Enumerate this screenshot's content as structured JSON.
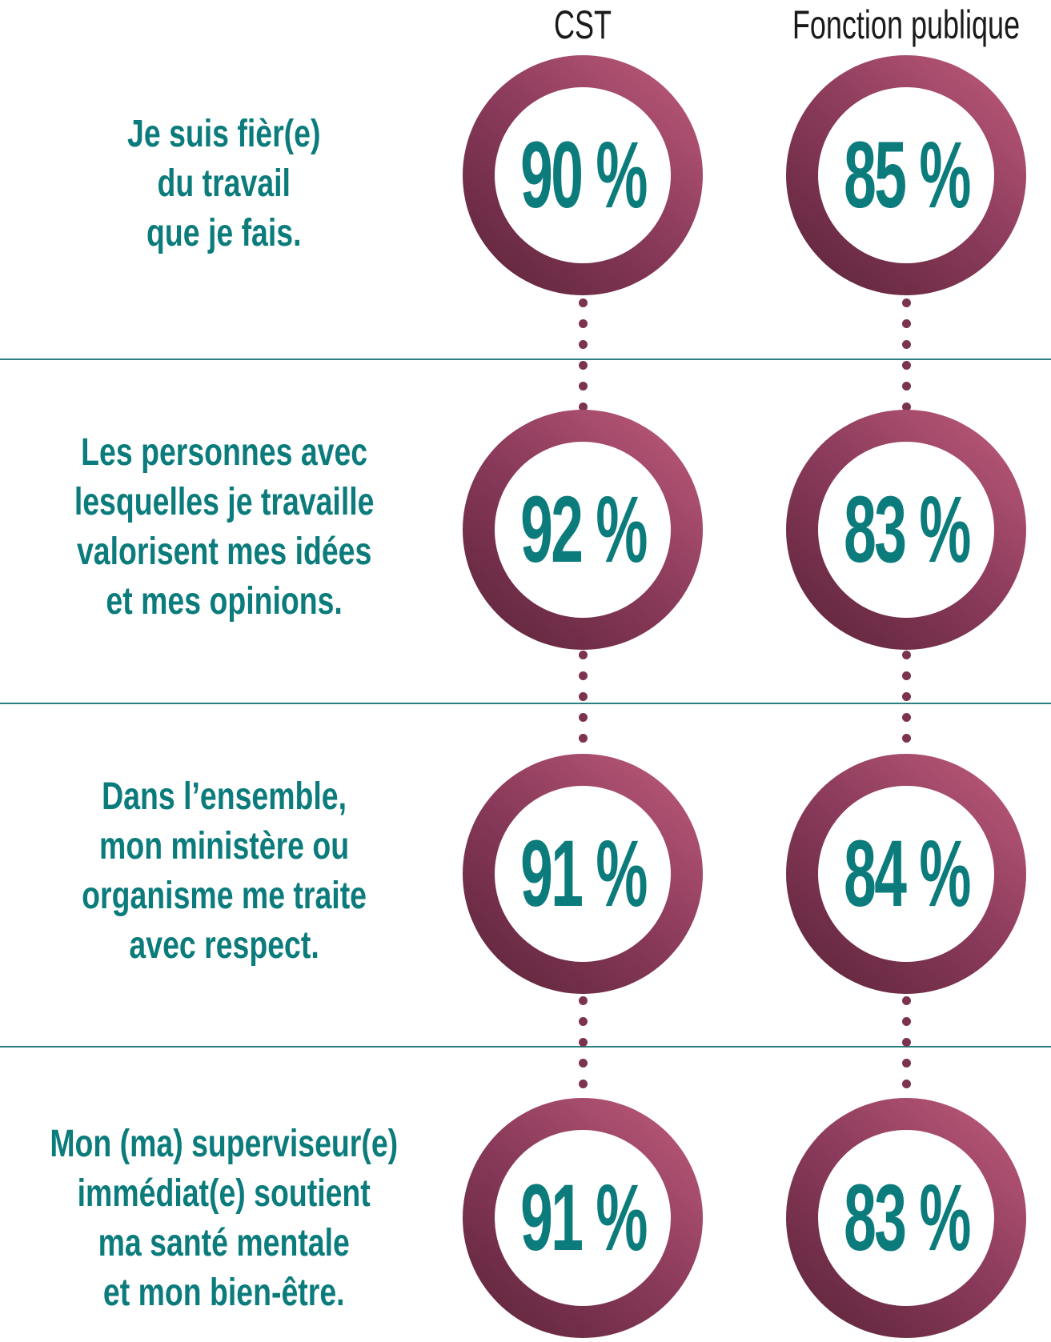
{
  "headers": {
    "cst": "CST",
    "public_service": "Fonction publique"
  },
  "rows": [
    {
      "statement_lines": [
        "Je suis fièr(e)",
        "du travail",
        "que je fais."
      ],
      "cst": "90 %",
      "public_service": "85 %"
    },
    {
      "statement_lines": [
        "Les personnes avec",
        "lesquelles je travaille",
        "valorisent mes idées",
        "et mes opinions."
      ],
      "cst": "92 %",
      "public_service": "83 %"
    },
    {
      "statement_lines": [
        "Dans l’ensemble,",
        "mon ministère ou",
        "organisme me traite",
        "avec respect."
      ],
      "cst": "91 %",
      "public_service": "84 %"
    },
    {
      "statement_lines": [
        "Mon (ma) superviseur(e)",
        "immédiat(e) soutient",
        "ma santé mentale",
        "et mon bien-être."
      ],
      "cst": "91 %",
      "public_service": "83 %"
    }
  ],
  "colors": {
    "teal": "#0b7b7c",
    "ring_dark": "#5a2338",
    "ring_light": "#c05c7c",
    "divider": "#2a7f80"
  }
}
